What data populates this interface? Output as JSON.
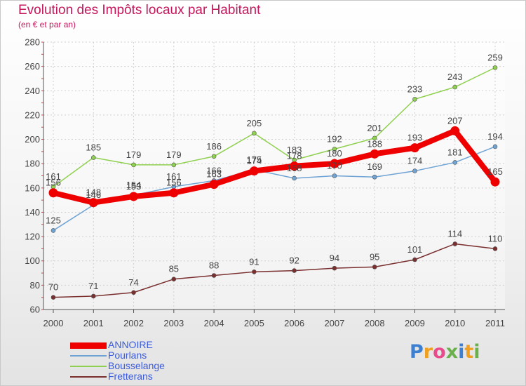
{
  "header": {
    "title": "Evolution des Impôts locaux par Habitant",
    "subtitle": "(en € et par an)"
  },
  "logo": {
    "text": "Proxiti",
    "letters": [
      {
        "ch": "P",
        "color": "#3d7fd0"
      },
      {
        "ch": "r",
        "color": "#f0a020"
      },
      {
        "ch": "o",
        "color": "#e84a8c"
      },
      {
        "ch": "x",
        "color": "#6ab04c"
      },
      {
        "ch": "i",
        "color": "#3d7fd0"
      },
      {
        "ch": "t",
        "color": "#f0a020"
      },
      {
        "ch": "i",
        "color": "#6ab04c"
      }
    ]
  },
  "chart_data": {
    "type": "line",
    "title": "Evolution des Impôts locaux par Habitant",
    "subtitle": "(en € et par an)",
    "xlabel": "",
    "ylabel": "",
    "x": [
      "2000",
      "2001",
      "2002",
      "2003",
      "2004",
      "2005",
      "2006",
      "2007",
      "2008",
      "2009",
      "2010",
      "2011"
    ],
    "ylim": [
      60,
      280
    ],
    "yticks": [
      60,
      80,
      100,
      120,
      140,
      160,
      180,
      200,
      220,
      240,
      260,
      280
    ],
    "grid": true,
    "legend_position": "bottom-left",
    "series": [
      {
        "name": "ANNOIRE",
        "color": "#ee0000",
        "width": 8,
        "marker": 6.5,
        "values": [
          156,
          148,
          153,
          156,
          163,
          174,
          178,
          180,
          188,
          193,
          207,
          165
        ],
        "labels": [
          156,
          148,
          153,
          156,
          163,
          174,
          178,
          180,
          188,
          193,
          207,
          165
        ]
      },
      {
        "name": "Pourlans",
        "color": "#6fa3d4",
        "width": 1.5,
        "marker": 3,
        "values": [
          125,
          146,
          154,
          161,
          166,
          175,
          168,
          170,
          169,
          174,
          181,
          194
        ],
        "labels": [
          125,
          146,
          154,
          161,
          166,
          175,
          168,
          170,
          169,
          174,
          181,
          194
        ]
      },
      {
        "name": "Bousselange",
        "color": "#90d050",
        "width": 1.5,
        "marker": 3,
        "values": [
          161,
          185,
          179,
          179,
          186,
          205,
          183,
          192,
          201,
          233,
          243,
          259
        ],
        "labels": [
          161,
          185,
          179,
          179,
          186,
          205,
          183,
          192,
          201,
          233,
          243,
          259
        ]
      },
      {
        "name": "Fretterans",
        "color": "#7a2f2f",
        "width": 1.5,
        "marker": 3,
        "values": [
          70,
          71,
          74,
          85,
          88,
          91,
          92,
          94,
          95,
          101,
          114,
          110
        ],
        "labels": [
          70,
          71,
          74,
          85,
          88,
          91,
          92,
          94,
          95,
          101,
          114,
          110
        ]
      }
    ]
  }
}
